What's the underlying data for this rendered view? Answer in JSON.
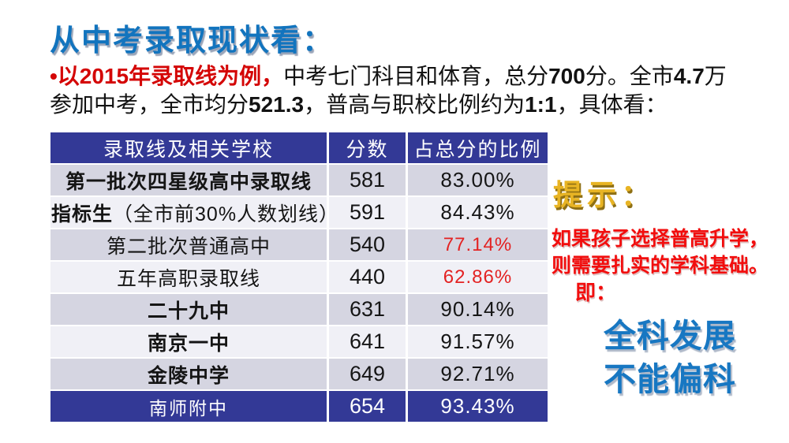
{
  "title": {
    "text": "从中考录取现状看："
  },
  "intro": {
    "lines": [
      {
        "segments": [
          {
            "text": "•以2015年录取线为例，",
            "style": "red-bold"
          },
          {
            "text": "中考七门科目和体育，总分",
            "style": "normal"
          },
          {
            "text": "700",
            "style": "num"
          },
          {
            "text": "分。全市",
            "style": "normal"
          },
          {
            "text": "4.7",
            "style": "num"
          },
          {
            "text": "万",
            "style": "normal"
          }
        ]
      },
      {
        "segments": [
          {
            "text": "参加中考，全市均分",
            "style": "normal"
          },
          {
            "text": "521.3",
            "style": "num"
          },
          {
            "text": "，普高与职校比例约为",
            "style": "normal"
          },
          {
            "text": "1:1",
            "style": "num"
          },
          {
            "text": "，具体看：",
            "style": "normal"
          }
        ]
      }
    ]
  },
  "table": {
    "headers": [
      "录取线及相关学校",
      "分数",
      "占总分的比例"
    ],
    "rows": [
      {
        "bold_part": "第一批次四星级高中录取线",
        "normal_part": "",
        "score": "581",
        "ratio": "83.00%",
        "shade": "dark",
        "align": "center",
        "ratio_red": false
      },
      {
        "bold_part": "指标生",
        "normal_part": "（全市前30%人数划线）",
        "score": "591",
        "ratio": "84.43%",
        "shade": "light",
        "align": "left",
        "ratio_red": false
      },
      {
        "bold_part": "",
        "normal_part": "第二批次普通高中",
        "score": "540",
        "ratio": "77.14%",
        "shade": "dark",
        "align": "center",
        "ratio_red": true
      },
      {
        "bold_part": "",
        "normal_part": "五年高职录取线",
        "score": "440",
        "ratio": "62.86%",
        "shade": "light",
        "align": "center",
        "ratio_red": true
      },
      {
        "bold_part": "二十九中",
        "normal_part": "",
        "score": "631",
        "ratio": "90.14%",
        "shade": "dark",
        "align": "center",
        "ratio_red": false
      },
      {
        "bold_part": "南京一中",
        "normal_part": "",
        "score": "641",
        "ratio": "91.57%",
        "shade": "light",
        "align": "center",
        "ratio_red": false
      },
      {
        "bold_part": "金陵中学",
        "normal_part": "",
        "score": "649",
        "ratio": "92.71%",
        "shade": "dark",
        "align": "center",
        "ratio_red": false
      },
      {
        "bold_part": "",
        "normal_part": "南师附中",
        "score": "654",
        "ratio": "93.43%",
        "shade": "navy",
        "align": "center",
        "ratio_red": false
      }
    ]
  },
  "aside": {
    "hint": "提示：",
    "red_lines": [
      "如果孩子选择普高升学，",
      "则需要扎实的学科基础。",
      "即："
    ],
    "blue_lines": [
      "全科发展",
      "不能偏科"
    ]
  },
  "colors": {
    "title_blue": "#1274BE",
    "accent_blue": "#1777C2",
    "navy": "#333996",
    "row_dark": "#D5D5E1",
    "row_light": "#F0F0F6",
    "red_intro": "#D40606",
    "red_table": "#E32222",
    "red_aside": "#F20D0D",
    "gold": "#E8B424"
  }
}
